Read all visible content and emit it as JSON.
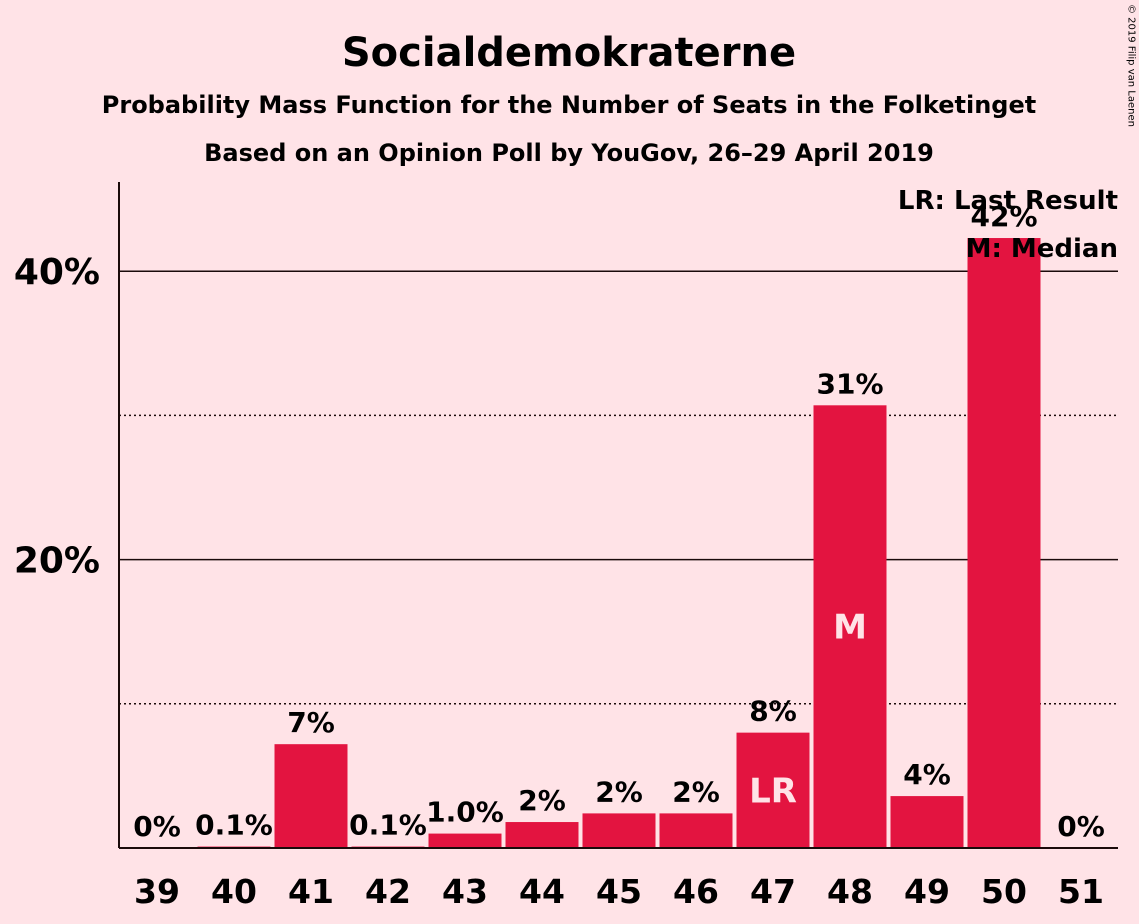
{
  "chart_data": {
    "type": "bar",
    "title": "Socialdemokraterne",
    "subtitle": "Probability Mass Function for the Number of Seats in the Folketinget",
    "subtitle2": "Based on an Opinion Poll by YouGov, 26–29 April 2019",
    "copyright": "© 2019 Filip van Laenen",
    "categories": [
      "39",
      "40",
      "41",
      "42",
      "43",
      "44",
      "45",
      "46",
      "47",
      "48",
      "49",
      "50",
      "51"
    ],
    "values": [
      0,
      0.1,
      7.2,
      0.1,
      1.0,
      1.8,
      2.4,
      2.4,
      8.0,
      30.7,
      3.6,
      42.3,
      0
    ],
    "data_labels": [
      "0%",
      "0.1%",
      "7%",
      "0.1%",
      "1.0%",
      "2%",
      "2%",
      "2%",
      "8%",
      "31%",
      "4%",
      "42%",
      "0%"
    ],
    "ylim": [
      0,
      46
    ],
    "yticks_major": [
      20,
      40
    ],
    "ytick_labels": [
      "20%",
      "40%"
    ],
    "yticks_minor": [
      10,
      30
    ],
    "last_result": {
      "category": "47",
      "marker": "LR"
    },
    "median": {
      "category": "48",
      "marker": "M"
    },
    "legend": [
      "LR: Last Result",
      "M: Median"
    ],
    "bar_color": "#E31440",
    "background_color": "#FFE3E7"
  }
}
